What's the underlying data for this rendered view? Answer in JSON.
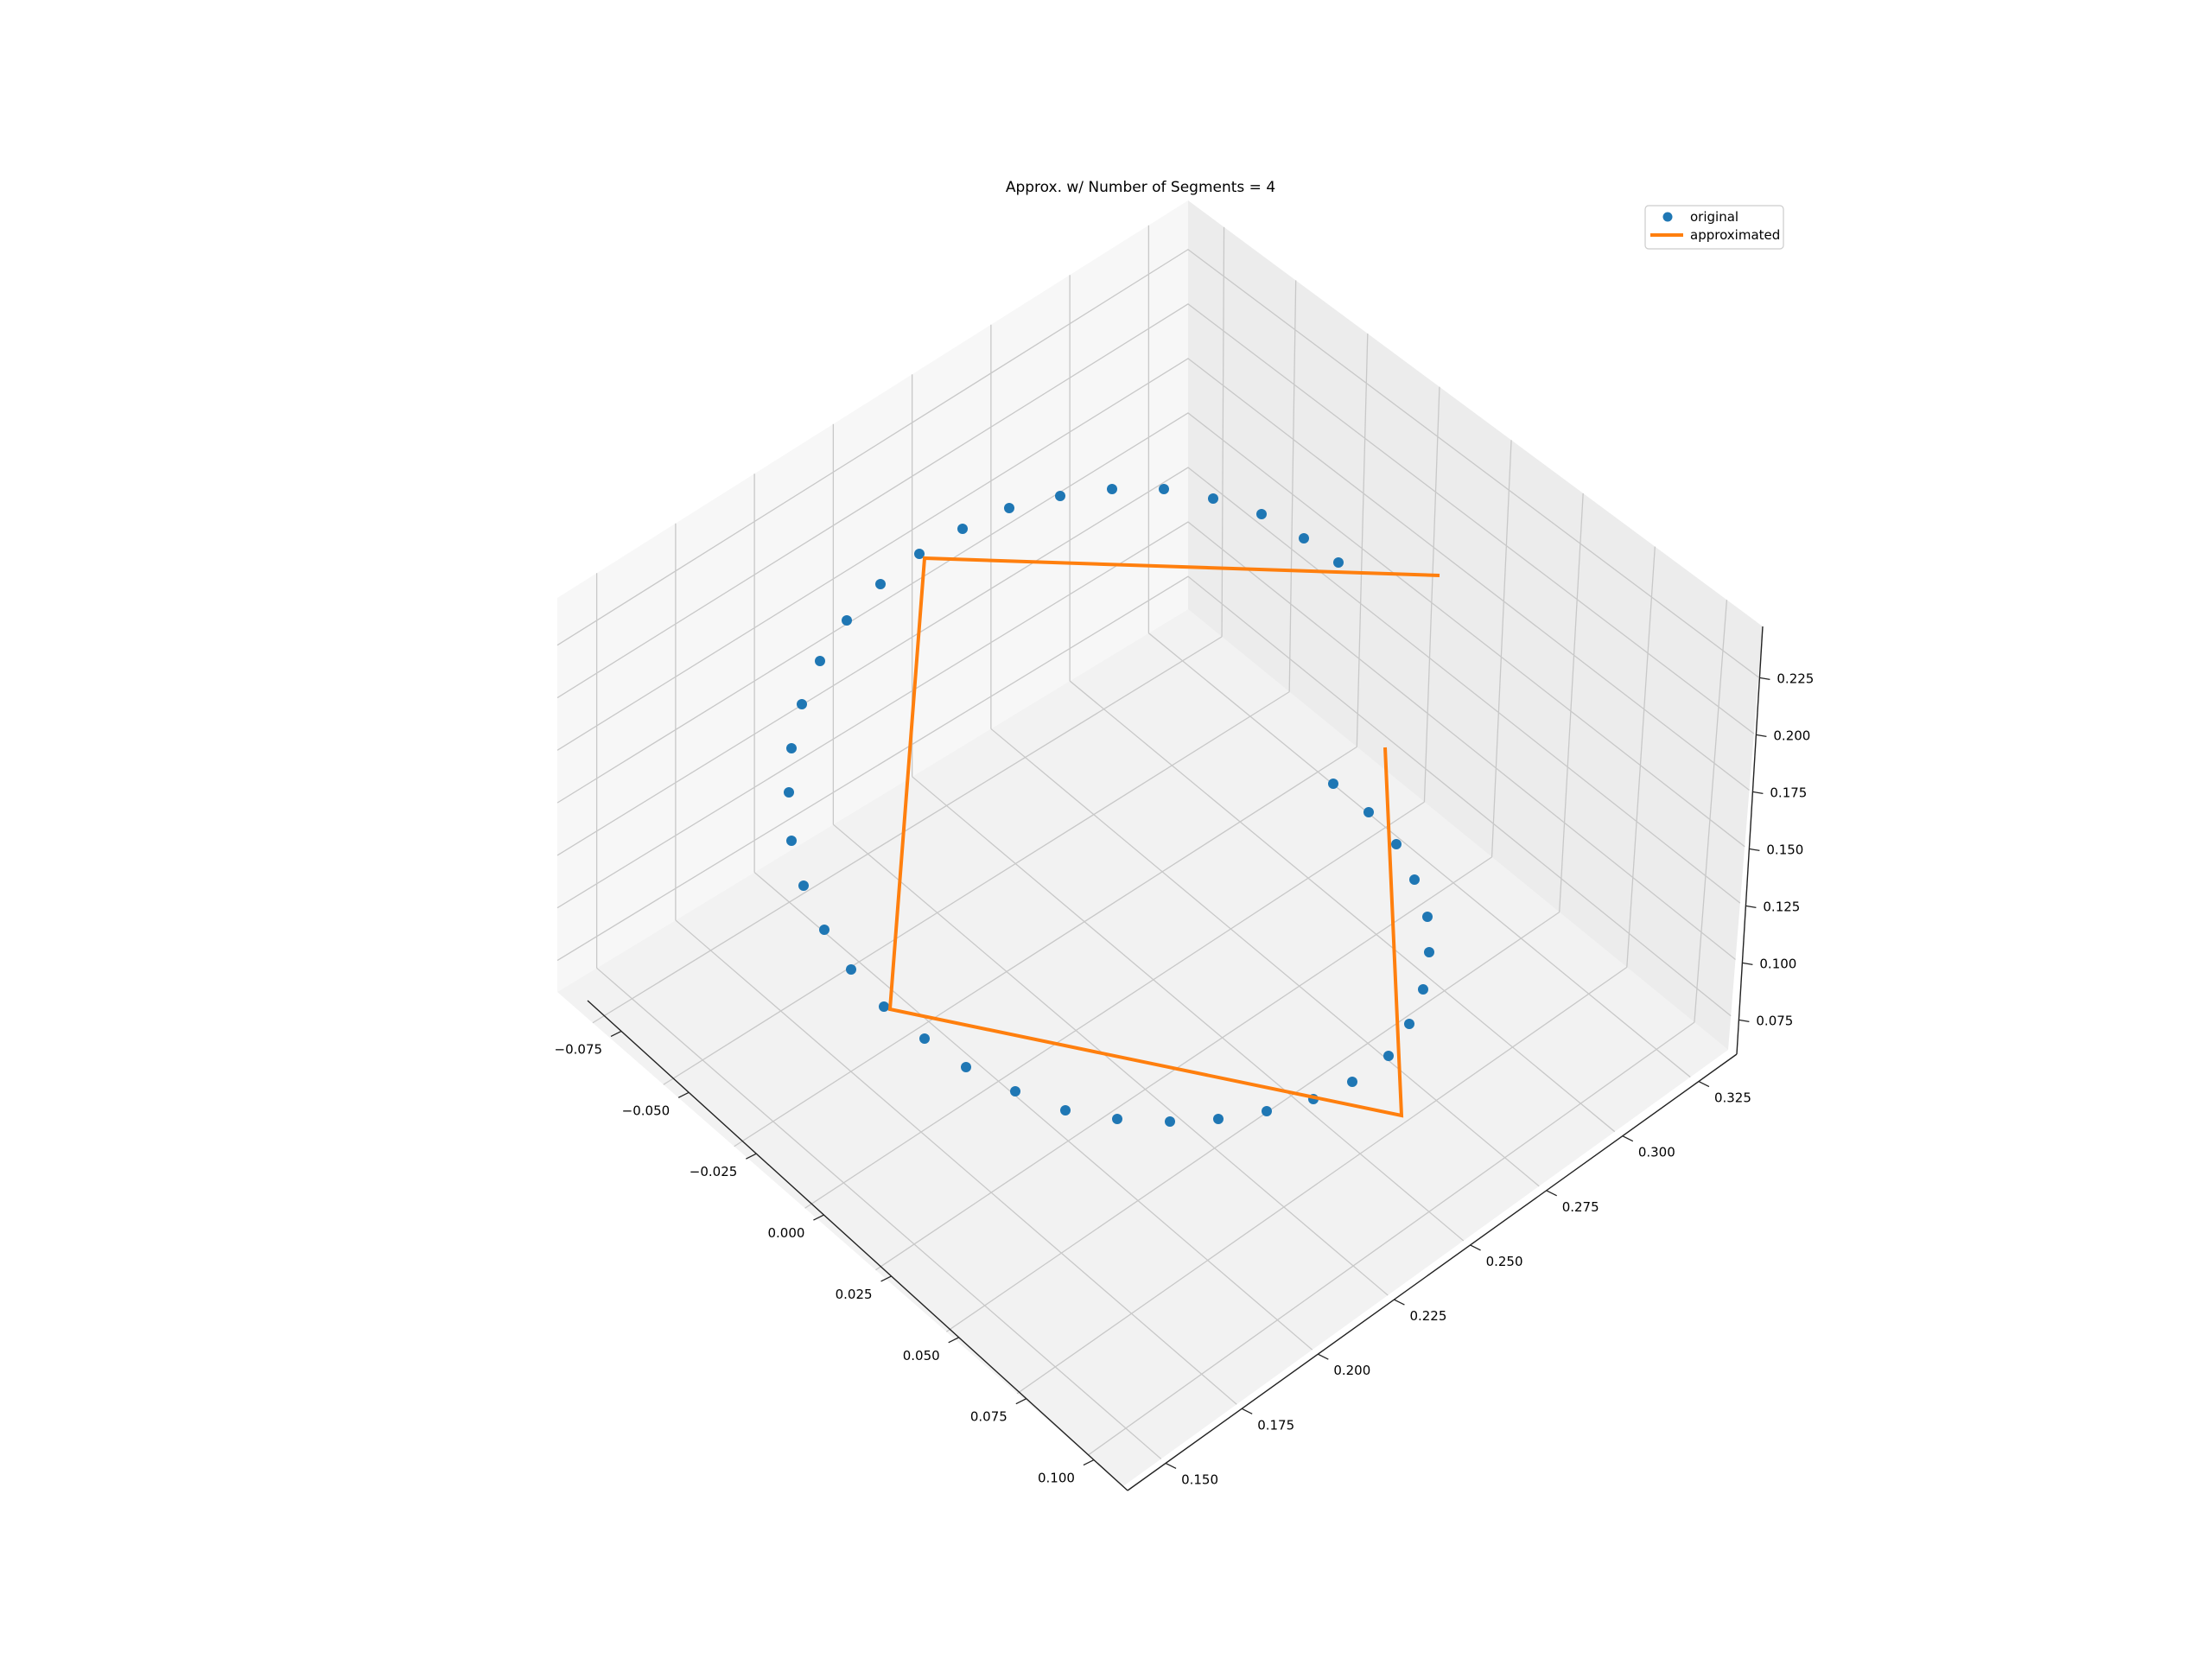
{
  "chart_data": {
    "type": "scatter",
    "title": "Approx. w/ Number of Segments = 4",
    "legend": {
      "placement": "top-right",
      "entries": [
        {
          "label": "original",
          "marker": "circle",
          "color": "#1f77b4"
        },
        {
          "label": "approximated",
          "marker": "line",
          "color": "#ff7f0e"
        }
      ]
    },
    "grid": true,
    "projection": "3d",
    "axes": {
      "x": {
        "label": "",
        "ticks": [
          "−0.075",
          "−0.050",
          "−0.025",
          "0.000",
          "0.025",
          "0.050",
          "0.075",
          "0.100"
        ]
      },
      "y": {
        "label": "",
        "ticks": [
          "0.150",
          "0.175",
          "0.200",
          "0.225",
          "0.250",
          "0.275",
          "0.300",
          "0.325"
        ]
      },
      "z": {
        "label": "",
        "ticks": [
          "0.075",
          "0.100",
          "0.125",
          "0.150",
          "0.175",
          "0.200",
          "0.225"
        ]
      }
    },
    "series": [
      {
        "name": "original",
        "type": "scatter",
        "color": "#1f77b4",
        "points": [
          [
            1543,
            907
          ],
          [
            1584,
            940
          ],
          [
            1616,
            977
          ],
          [
            1637,
            1018
          ],
          [
            1652,
            1061
          ],
          [
            1654,
            1102
          ],
          [
            1647,
            1145
          ],
          [
            1631,
            1185
          ],
          [
            1607,
            1222
          ],
          [
            1565,
            1252
          ],
          [
            1520,
            1272
          ],
          [
            1466,
            1286
          ],
          [
            1410,
            1295
          ],
          [
            1354,
            1298
          ],
          [
            1293,
            1295
          ],
          [
            1233,
            1285
          ],
          [
            1175,
            1263
          ],
          [
            1118,
            1235
          ],
          [
            1070,
            1202
          ],
          [
            1023,
            1165
          ],
          [
            985,
            1122
          ],
          [
            954,
            1076
          ],
          [
            930,
            1025
          ],
          [
            916,
            973
          ],
          [
            913,
            917
          ],
          [
            916,
            866
          ],
          [
            928,
            815
          ],
          [
            949,
            765
          ],
          [
            980,
            718
          ],
          [
            1019,
            676
          ],
          [
            1064,
            641
          ],
          [
            1114,
            612
          ],
          [
            1168,
            588
          ],
          [
            1227,
            574
          ],
          [
            1287,
            566
          ],
          [
            1347,
            566
          ],
          [
            1404,
            577
          ],
          [
            1460,
            595
          ],
          [
            1509,
            623
          ],
          [
            1549,
            651
          ]
        ]
      },
      {
        "name": "approximated",
        "type": "line",
        "color": "#ff7f0e",
        "points": [
          [
            1666,
            666
          ],
          [
            1070,
            646
          ],
          [
            1030,
            1168
          ],
          [
            1622,
            1291
          ],
          [
            1603,
            865
          ]
        ]
      }
    ]
  }
}
